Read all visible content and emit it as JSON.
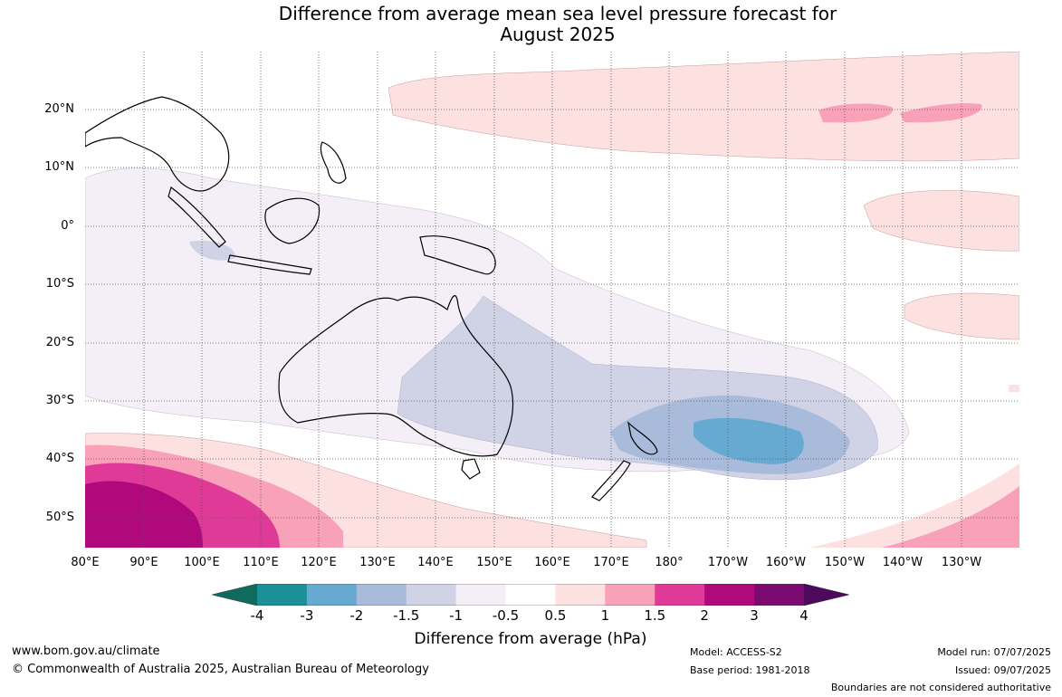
{
  "title_line1": "Difference from average mean sea level pressure forecast for",
  "title_line2": "August 2025",
  "latitude_labels": [
    "20°N",
    "10°N",
    "0°",
    "10°S",
    "20°S",
    "30°S",
    "40°S",
    "50°S"
  ],
  "longitude_labels": [
    "80°E",
    "90°E",
    "100°E",
    "110°E",
    "120°E",
    "130°E",
    "140°E",
    "150°E",
    "160°E",
    "170°E",
    "180°",
    "170°W",
    "160°W",
    "150°W",
    "140°W",
    "130°W"
  ],
  "colorbar": {
    "ticks": [
      "-4",
      "-3",
      "-2",
      "-1.5",
      "-1",
      "-0.5",
      "0.5",
      "1",
      "1.5",
      "2",
      "3",
      "4"
    ],
    "colors": [
      "#0e6b5e",
      "#1b9096",
      "#66aad1",
      "#a8bbdb",
      "#d0d2e6",
      "#f4eef6",
      "#ffffff",
      "#fde0e0",
      "#f9a1b8",
      "#df3a98",
      "#b0097c",
      "#7b0b70",
      "#4d0a5c"
    ],
    "label": "Difference from average (hPa)"
  },
  "footer": {
    "website": "www.bom.gov.au/climate",
    "copyright": "© Commonwealth of Australia 2025, Australian Bureau of Meteorology",
    "model": "Model: ACCESS-S2",
    "base_period": "Base period: 1981-2018",
    "model_run": "Model run: 07/07/2025",
    "issued": "Issued: 09/07/2025",
    "disclaimer": "Boundaries are not considered authoritative"
  }
}
